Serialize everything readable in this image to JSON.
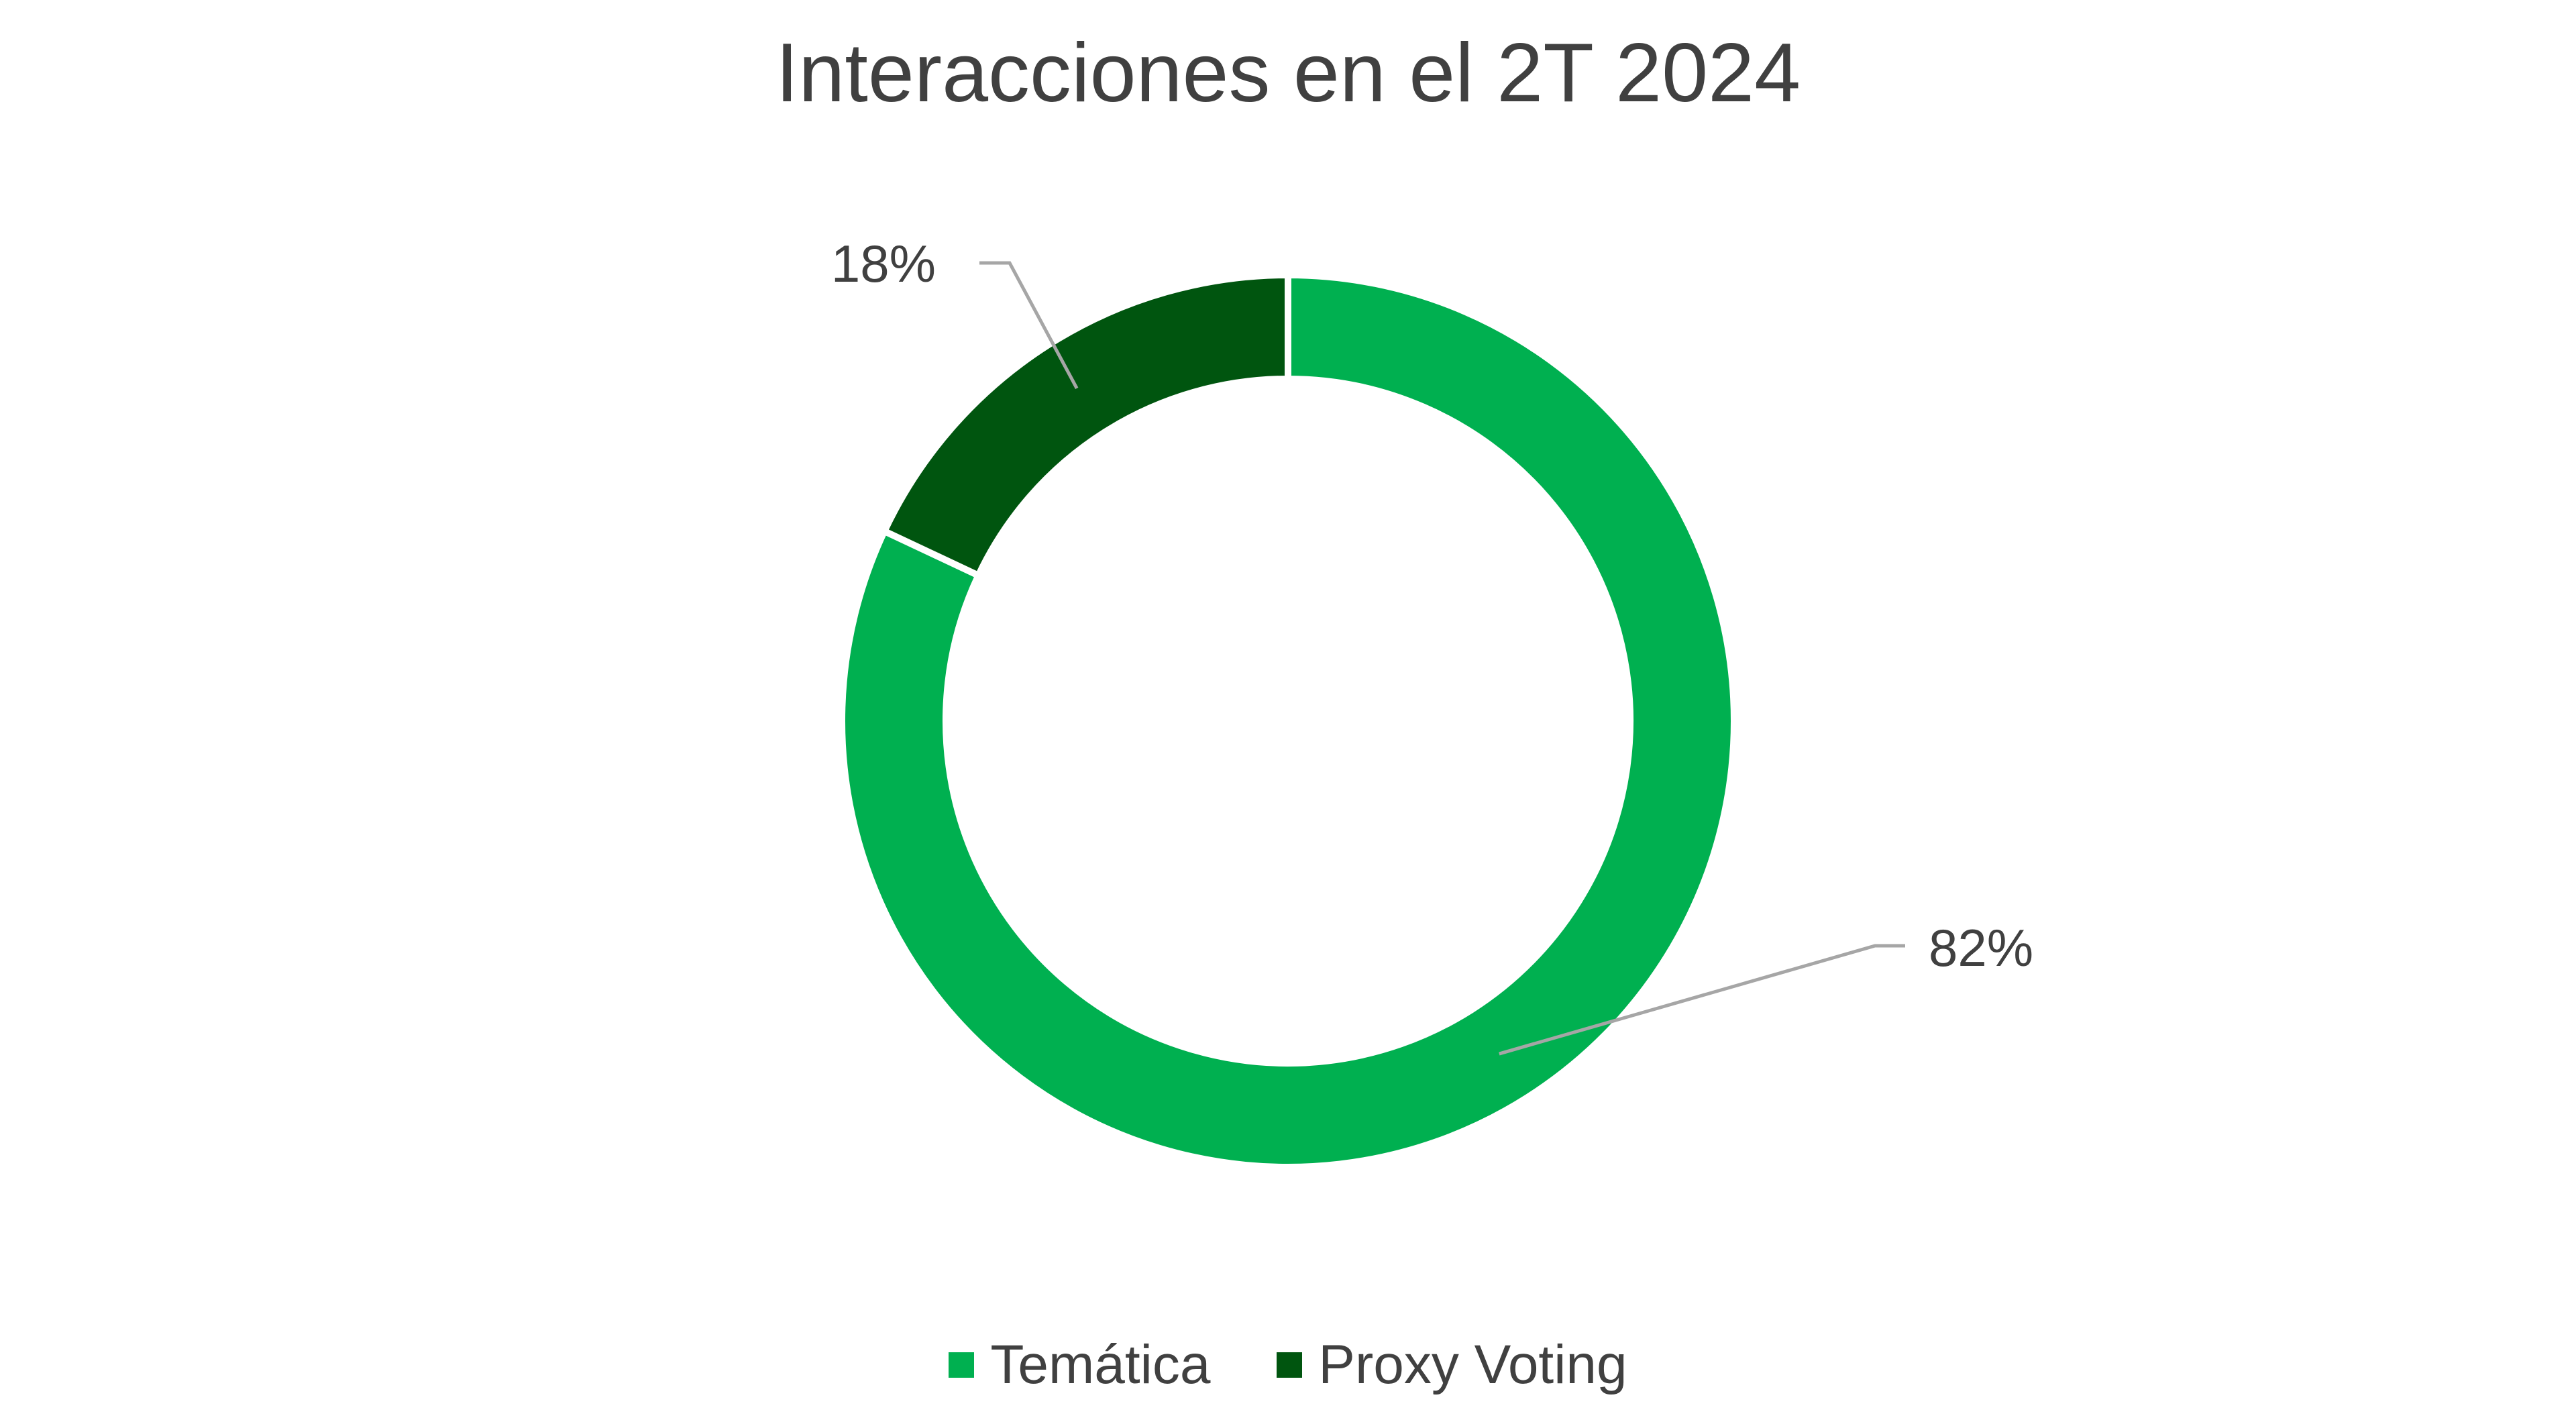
{
  "chart_data": {
    "type": "pie",
    "title": "Interacciones en el 2T 2024",
    "categories": [
      "Temática",
      "Proxy Voting"
    ],
    "values": [
      82,
      18
    ],
    "labels": [
      "82%",
      "18%"
    ],
    "colors": [
      "#00B050",
      "#00550F"
    ],
    "legend_position": "bottom"
  }
}
